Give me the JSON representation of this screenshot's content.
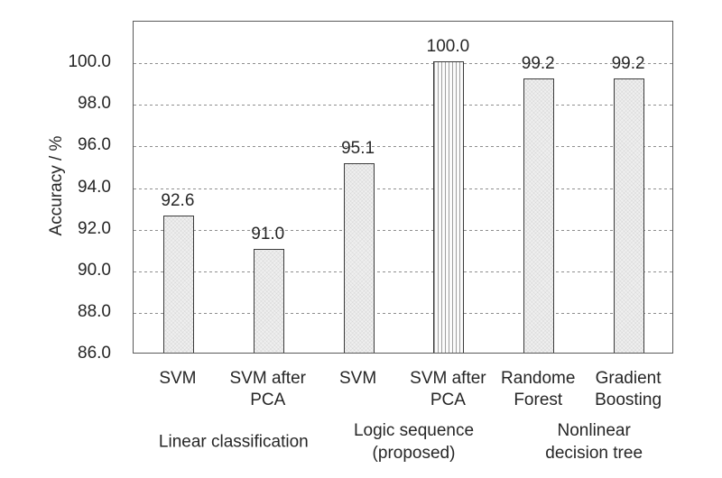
{
  "chart_data": {
    "type": "bar",
    "title": "",
    "xlabel": "",
    "ylabel": "Accuracy / %",
    "ylim": [
      86,
      102
    ],
    "grid": "horizontal-dashed",
    "legend_position": "none",
    "yticks": [
      {
        "value": 86,
        "label": "86.0"
      },
      {
        "value": 88,
        "label": "88.0"
      },
      {
        "value": 90,
        "label": "90.0"
      },
      {
        "value": 92,
        "label": "92.0"
      },
      {
        "value": 94,
        "label": "94.0"
      },
      {
        "value": 96,
        "label": "96.0"
      },
      {
        "value": 98,
        "label": "98.0"
      },
      {
        "value": 100,
        "label": "100.0"
      }
    ],
    "categories": [
      "SVM",
      "SVM after PCA",
      "SVM",
      "SVM after PCA",
      "Randome Forest",
      "Gradient Boosting"
    ],
    "category_label_lines": [
      [
        "SVM"
      ],
      [
        "SVM after",
        "PCA"
      ],
      [
        "SVM"
      ],
      [
        "SVM after",
        "PCA"
      ],
      [
        "Randome",
        "Forest"
      ],
      [
        "Gradient",
        "Boosting"
      ]
    ],
    "values": [
      92.6,
      91.0,
      95.1,
      100.0,
      99.2,
      99.2
    ],
    "bar_value_labels": [
      "92.6",
      "91.0",
      "95.1",
      "100.0",
      "99.2",
      "99.2"
    ],
    "bar_fill_patterns": [
      "light-crosshatch",
      "light-crosshatch",
      "light-crosshatch",
      "vertical-stripes",
      "light-crosshatch",
      "light-crosshatch"
    ],
    "group_labels": [
      {
        "lines": [
          "Linear classification"
        ],
        "bars": [
          0,
          1
        ]
      },
      {
        "lines": [
          "Logic sequence",
          "(proposed)"
        ],
        "bars": [
          2,
          3
        ]
      },
      {
        "lines": [
          "Nonlinear",
          "decision tree"
        ],
        "bars": [
          4,
          5
        ]
      }
    ],
    "colors": {
      "bar_fill": "#f0f0f0",
      "bar_border": "#3b3b3b",
      "stripe": "#9f9f9f",
      "frame_border": "#595959",
      "gridline": "#8f8f8f",
      "text": "#262626"
    }
  }
}
